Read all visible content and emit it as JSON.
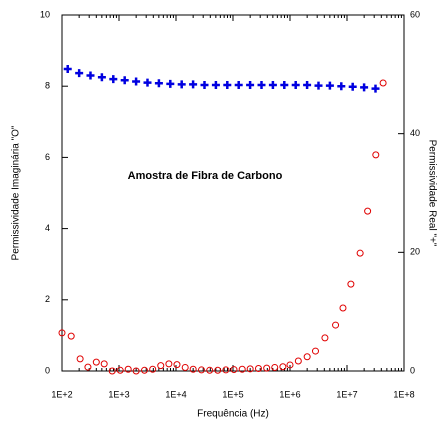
{
  "chart_data": {
    "type": "scatter",
    "title": "Amostra de Fibra de Carbono",
    "xlabel": "Frequência (Hz)",
    "ylabel": "Permissividade Imaginária \"O\"",
    "y2label": "Permissividade Real \"+\"",
    "xscale": "log",
    "xlim": [
      100,
      100000000
    ],
    "xticks": [
      {
        "value": 100,
        "label": "1E+2"
      },
      {
        "value": 1000,
        "label": "1E+3"
      },
      {
        "value": 10000,
        "label": "1E+4"
      },
      {
        "value": 100000,
        "label": "1E+5"
      },
      {
        "value": 1000000,
        "label": "1E+6"
      },
      {
        "value": 10000000,
        "label": "1E+7"
      },
      {
        "value": 100000000,
        "label": "1E+8"
      }
    ],
    "ylim": [
      0,
      10
    ],
    "yticks": [
      0,
      2,
      4,
      6,
      8,
      10
    ],
    "y2lim": [
      0,
      60
    ],
    "y2ticks": [
      0,
      20,
      40,
      60
    ],
    "series": [
      {
        "color": "#e00000",
        "marker": "circle",
        "axis": "y",
        "x": [
          100,
          145,
          208,
          285,
          400,
          550,
          760,
          1050,
          1450,
          2000,
          2800,
          3900,
          5400,
          7500,
          10400,
          14500,
          20000,
          28000,
          39000,
          54000,
          75000,
          104000,
          145000,
          200000,
          280000,
          390000,
          540000,
          750000,
          1000000,
          1400000,
          2000000,
          2800000,
          4100000,
          6300000,
          8500000,
          11700000,
          17000000,
          23000000,
          32000000,
          43000000
        ],
        "values": [
          1.07,
          0.98,
          0.34,
          0.11,
          0.25,
          0.2,
          0.0,
          0.02,
          0.05,
          0.0,
          0.02,
          0.05,
          0.15,
          0.2,
          0.18,
          0.1,
          0.05,
          0.03,
          0.02,
          0.02,
          0.03,
          0.04,
          0.05,
          0.06,
          0.07,
          0.08,
          0.1,
          0.12,
          0.17,
          0.28,
          0.4,
          0.56,
          0.93,
          1.29,
          1.77,
          2.44,
          3.31,
          4.49,
          6.07,
          8.09
        ]
      },
      {
        "color": "#0000e0",
        "marker": "cross",
        "axis": "y2",
        "x": [
          126,
          200,
          316,
          501,
          794,
          1259,
          1995,
          3162,
          5012,
          7943,
          12589,
          19953,
          31623,
          50119,
          79433,
          125893,
          199526,
          316228,
          501187,
          794328,
          1258925,
          1995262,
          3162278,
          5011872,
          7943282,
          12589254,
          19952623,
          31622777
        ],
        "values": [
          50.9,
          50.2,
          49.8,
          49.5,
          49.2,
          49.0,
          48.8,
          48.6,
          48.5,
          48.4,
          48.3,
          48.3,
          48.2,
          48.2,
          48.2,
          48.2,
          48.2,
          48.2,
          48.2,
          48.2,
          48.2,
          48.2,
          48.1,
          48.1,
          48.0,
          47.9,
          47.8,
          47.6
        ]
      }
    ]
  }
}
